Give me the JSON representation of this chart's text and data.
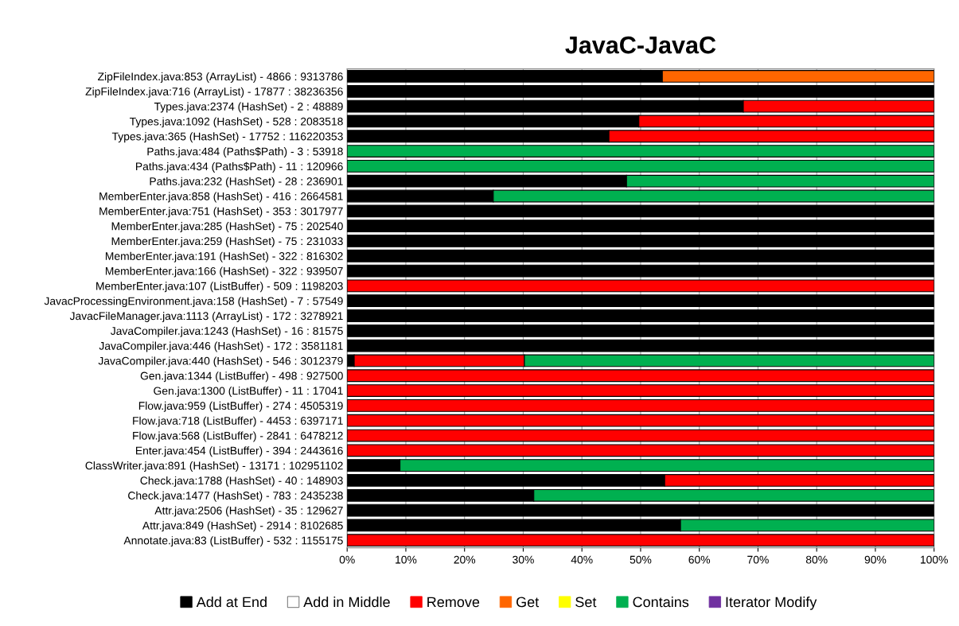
{
  "chart_data": {
    "type": "bar",
    "orientation": "horizontal",
    "stacked": true,
    "title": "JavaC-JavaC",
    "categories": [
      "ZipFileIndex.java:853 (ArrayList) - 4866 : 9313786",
      "ZipFileIndex.java:716 (ArrayList) - 17877 : 38236356",
      "Types.java:2374 (HashSet) - 2 : 48889",
      "Types.java:1092 (HashSet) - 528 : 2083518",
      "Types.java:365 (HashSet) - 17752 : 116220353",
      "Paths.java:484 (Paths$Path) - 3 : 53918",
      "Paths.java:434 (Paths$Path) - 11 : 120966",
      "Paths.java:232 (HashSet) - 28 : 236901",
      "MemberEnter.java:858 (HashSet) - 416 : 2664581",
      "MemberEnter.java:751 (HashSet) - 353 : 3017977",
      "MemberEnter.java:285 (HashSet) - 75 : 202540",
      "MemberEnter.java:259 (HashSet) - 75 : 231033",
      "MemberEnter.java:191 (HashSet) - 322 : 816302",
      "MemberEnter.java:166 (HashSet) - 322 : 939507",
      "MemberEnter.java:107 (ListBuffer) - 509 : 1198203",
      "JavacProcessingEnvironment.java:158 (HashSet) - 7 : 57549",
      "JavacFileManager.java:1113 (ArrayList) - 172 : 3278921",
      "JavaCompiler.java:1243 (HashSet) - 16 : 81575",
      "JavaCompiler.java:446 (HashSet) - 172 : 3581181",
      "JavaCompiler.java:440 (HashSet) - 546 : 3012379",
      "Gen.java:1344 (ListBuffer) - 498 : 927500",
      "Gen.java:1300 (ListBuffer) - 11 : 17041",
      "Flow.java:959 (ListBuffer) - 274 : 4505319",
      "Flow.java:718 (ListBuffer) - 4453 : 6397171",
      "Flow.java:568 (ListBuffer) - 2841 : 6478212",
      "Enter.java:454 (ListBuffer) - 394 : 2443616",
      "ClassWriter.java:891 (HashSet) - 13171 : 102951102",
      "Check.java:1788 (HashSet) - 40 : 148903",
      "Check.java:1477 (HashSet) - 783 : 2435238",
      "Attr.java:2506 (HashSet) - 35 : 129627",
      "Attr.java:849 (HashSet) - 2914 : 8102685",
      "Annotate.java:83 (ListBuffer) - 532 : 1155175"
    ],
    "series": [
      {
        "name": "Add at End",
        "color": "#000000",
        "values": [
          53.7,
          100,
          67.5,
          49.7,
          44.6,
          0,
          0,
          47.6,
          24.9,
          100,
          100,
          100,
          100,
          100,
          0,
          100,
          100,
          100,
          100,
          1.2,
          0,
          0,
          0,
          0,
          0,
          0,
          9.0,
          54.1,
          31.8,
          100,
          56.8,
          0
        ]
      },
      {
        "name": "Add in Middle",
        "color": "#ffffff",
        "values": [
          0,
          0,
          0,
          0,
          0,
          0,
          0,
          0,
          0,
          0,
          0,
          0,
          0,
          0,
          0,
          0,
          0,
          0,
          0,
          0,
          0,
          0,
          0,
          0,
          0,
          0,
          0,
          0,
          0,
          0,
          0,
          0
        ]
      },
      {
        "name": "Remove",
        "color": "#ff0000",
        "values": [
          0,
          0,
          32.5,
          50.3,
          55.4,
          0,
          0,
          0,
          0,
          0,
          0,
          0,
          0,
          0,
          100,
          0,
          0,
          0,
          0,
          29.0,
          100,
          100,
          100,
          100,
          100,
          100,
          0,
          45.9,
          0,
          0,
          0,
          100
        ]
      },
      {
        "name": "Get",
        "color": "#ff6600",
        "values": [
          46.3,
          0,
          0,
          0,
          0,
          0,
          0,
          0,
          0,
          0,
          0,
          0,
          0,
          0,
          0,
          0,
          0,
          0,
          0,
          0,
          0,
          0,
          0,
          0,
          0,
          0,
          0,
          0,
          0,
          0,
          0,
          0
        ]
      },
      {
        "name": "Set",
        "color": "#ffff00",
        "values": [
          0,
          0,
          0,
          0,
          0,
          0,
          0,
          0,
          0,
          0,
          0,
          0,
          0,
          0,
          0,
          0,
          0,
          0,
          0,
          0,
          0,
          0,
          0,
          0,
          0,
          0,
          0,
          0,
          0,
          0,
          0,
          0
        ]
      },
      {
        "name": "Contains",
        "color": "#00b050",
        "values": [
          0,
          0,
          0,
          0,
          0,
          100,
          100,
          52.4,
          75.1,
          0,
          0,
          0,
          0,
          0,
          0,
          0,
          0,
          0,
          0,
          69.8,
          0,
          0,
          0,
          0,
          0,
          0,
          91.0,
          0,
          68.2,
          0,
          43.2,
          0
        ]
      },
      {
        "name": "Iterator Modify",
        "color": "#7030a0",
        "values": [
          0,
          0,
          0,
          0,
          0,
          0,
          0,
          0,
          0,
          0,
          0,
          0,
          0,
          0,
          0,
          0,
          0,
          0,
          0,
          0,
          0,
          0,
          0,
          0,
          0,
          0,
          0,
          0,
          0,
          0,
          0,
          0
        ]
      }
    ],
    "xlim": [
      0,
      100
    ],
    "xticks": [
      {
        "value": 0,
        "label": "0%"
      },
      {
        "value": 10,
        "label": "10%"
      },
      {
        "value": 20,
        "label": "20%"
      },
      {
        "value": 30,
        "label": "30%"
      },
      {
        "value": 40,
        "label": "40%"
      },
      {
        "value": 50,
        "label": "50%"
      },
      {
        "value": 60,
        "label": "60%"
      },
      {
        "value": 70,
        "label": "70%"
      },
      {
        "value": 80,
        "label": "80%"
      },
      {
        "value": 90,
        "label": "90%"
      },
      {
        "value": 100,
        "label": "100%"
      }
    ],
    "grid": "x",
    "legend": "bottom"
  }
}
